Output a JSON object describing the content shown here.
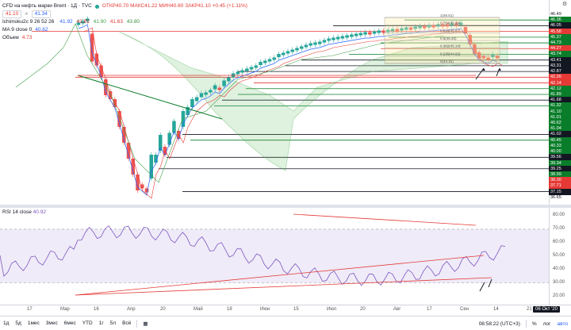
{
  "legend": {
    "title": "CFD на нефть марки Brent · 1Д · TVC",
    "ohlc": "ОТКР40.70  МАКС41.22  МИН40.60  ЗАКР41.10  +0.45 (+1.11%)",
    "sell_price": "41.10",
    "buy_price": "41.34",
    "ichimoku_label": "Ichimoku2c 9 26 52 26",
    "ichimoku_values": [
      "41.92",
      "42.91",
      "41.90",
      "41.63",
      "43.80"
    ],
    "ma_label": "MA 9 close 0",
    "ma_value": "40.62",
    "obv_label": "Объем",
    "obv_value": "4.73"
  },
  "rsi": {
    "label": "RSI 14 close",
    "value": "40.92",
    "levels": [
      "80.00",
      "70.00",
      "60.00",
      "50.00",
      "40.00",
      "30.00",
      "20.00"
    ]
  },
  "price_labels": [
    {
      "text": "46.49",
      "color": "#131722",
      "plain": true
    },
    {
      "text": "46.36",
      "color": "#0a7d2a"
    },
    {
      "text": "46.05",
      "color": "#131722"
    },
    {
      "text": "45.58",
      "color": "#e53935"
    },
    {
      "text": "45.37",
      "color": "#0a7d2a"
    },
    {
      "text": "44.73",
      "color": "#0a7d2a"
    },
    {
      "text": "44.27",
      "color": "#e53935"
    },
    {
      "text": "43.74",
      "color": "#0a7d2a"
    },
    {
      "text": "43.41",
      "color": "#131722"
    },
    {
      "text": "43.31",
      "color": "#131722"
    },
    {
      "text": "42.87",
      "color": "#131722"
    },
    {
      "text": "42.26",
      "color": "#e53935"
    },
    {
      "text": "42.14",
      "color": "#e53935"
    },
    {
      "text": "42.12",
      "color": "#0a7d2a"
    },
    {
      "text": "41.89",
      "color": "#0a7d2a"
    },
    {
      "text": "41.68",
      "color": "#131722"
    },
    {
      "text": "41.32",
      "color": "#0a7d2a"
    },
    {
      "text": "41.10",
      "color": "#0a7d2a"
    },
    {
      "text": "41.01",
      "color": "#0a7d2a"
    },
    {
      "text": "40.62",
      "color": "#0a7d2a"
    },
    {
      "text": "41.04",
      "color": "#0a7d2a"
    },
    {
      "text": "41.02",
      "color": "#131722"
    },
    {
      "text": "40.45",
      "color": "#0a7d2a"
    },
    {
      "text": "40.33",
      "color": "#0a7d2a"
    },
    {
      "text": "40.00",
      "color": "#0a7d2a"
    },
    {
      "text": "39.56",
      "color": "#131722"
    },
    {
      "text": "39.34",
      "color": "#0a7d2a"
    },
    {
      "text": "39.25",
      "color": "#131722"
    },
    {
      "text": "38.99",
      "color": "#0a7d2a"
    },
    {
      "text": "38.30",
      "color": "#e53935"
    },
    {
      "text": "37.71",
      "color": "#e53935"
    },
    {
      "text": "37.15",
      "color": "#131722"
    },
    {
      "text": "36.65",
      "color": "#131722",
      "plain": true
    }
  ],
  "time_labels": [
    "17",
    "Мар",
    "16",
    "Апр",
    "20",
    "Май",
    "18",
    "Июн",
    "15",
    "Июл",
    "20",
    "Авг",
    "17",
    "Сен",
    "14",
    "21"
  ],
  "time_current": "06 Окт '20",
  "fib_labels": [
    "1(46.51)",
    "0.764(45.99)",
    "0.618(45.67)",
    "0.5(45.40)",
    "0.382(45.14)",
    "0.236(44.82)",
    "0(44.31)"
  ],
  "bottom_bar": {
    "ranges": [
      "1д",
      "5д",
      "1мес",
      "3мес",
      "6мес",
      "YTD",
      "1г",
      "5л",
      "Всё"
    ],
    "time": "08:58:22 (UTC+3)",
    "percent": "%",
    "log": "лог",
    "auto": "авто"
  }
}
